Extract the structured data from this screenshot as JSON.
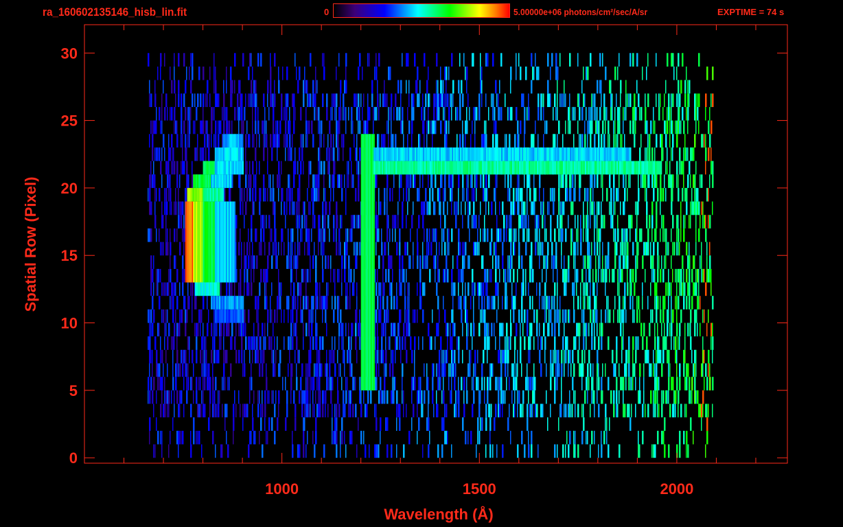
{
  "header": {
    "title": "ra_160602135146_hisb_lin.fit",
    "colorbar_min_label": "0",
    "colorbar_max_label": "5.00000e+06 photons/cm²/sec/A/sr",
    "exptime_label": "EXPTIME = 74 s"
  },
  "colors": {
    "axis": "#ff2a1a",
    "background": "#000000",
    "colormap": [
      "#000000",
      "#3c0078",
      "#0000ff",
      "#00ffff",
      "#00ff00",
      "#ffff00",
      "#ff8000",
      "#ff0000"
    ]
  },
  "chart_data": {
    "type": "heatmap",
    "xlabel": "Wavelength (Å)",
    "ylabel": "Spatial Row (Pixel)",
    "xlim": [
      500,
      2280
    ],
    "ylim": [
      -0.4,
      32.1
    ],
    "x_ticks": [
      1000,
      1500,
      2000
    ],
    "x_tick_labels": [
      "1000",
      "1500",
      "2000"
    ],
    "x_minor_step": 100,
    "y_ticks": [
      0,
      5,
      10,
      15,
      20,
      25,
      30
    ],
    "y_tick_labels": [
      "0",
      "5",
      "10",
      "15",
      "20",
      "25",
      "30"
    ],
    "value_range": [
      0,
      5000000
    ],
    "colormap": "rainbow",
    "grid": false,
    "noise_extent": {
      "wavelength": [
        660,
        2090
      ],
      "rows": [
        1,
        30
      ]
    },
    "features": [
      {
        "wavelength": [
          755,
          775
        ],
        "rows": [
          13,
          19
        ],
        "intensity": 0.93
      },
      {
        "wavelength": [
          775,
          800
        ],
        "rows": [
          13,
          19
        ],
        "intensity": 0.78
      },
      {
        "wavelength": [
          800,
          830
        ],
        "rows": [
          13,
          19
        ],
        "intensity": 0.62
      },
      {
        "wavelength": [
          830,
          880
        ],
        "rows": [
          13,
          19
        ],
        "intensity": 0.45
      },
      {
        "wavelength": [
          760,
          800
        ],
        "rows": [
          19,
          20
        ],
        "intensity": 0.75
      },
      {
        "wavelength": [
          800,
          850
        ],
        "rows": [
          19,
          20
        ],
        "intensity": 0.55
      },
      {
        "wavelength": [
          775,
          820
        ],
        "rows": [
          20,
          21
        ],
        "intensity": 0.62
      },
      {
        "wavelength": [
          820,
          870
        ],
        "rows": [
          20,
          21
        ],
        "intensity": 0.46
      },
      {
        "wavelength": [
          800,
          830
        ],
        "rows": [
          21,
          22
        ],
        "intensity": 0.6
      },
      {
        "wavelength": [
          830,
          900
        ],
        "rows": [
          21,
          22
        ],
        "intensity": 0.45
      },
      {
        "wavelength": [
          830,
          900
        ],
        "rows": [
          22,
          23
        ],
        "intensity": 0.45
      },
      {
        "wavelength": [
          850,
          900
        ],
        "rows": [
          23,
          24
        ],
        "intensity": 0.42
      },
      {
        "wavelength": [
          780,
          840
        ],
        "rows": [
          12,
          13
        ],
        "intensity": 0.5
      },
      {
        "wavelength": [
          820,
          900
        ],
        "rows": [
          11,
          12
        ],
        "intensity": 0.4
      },
      {
        "wavelength": [
          830,
          900
        ],
        "rows": [
          10,
          11
        ],
        "intensity": 0.35
      },
      {
        "wavelength": [
          1200,
          1232
        ],
        "rows": [
          5,
          24
        ],
        "intensity": 0.6
      },
      {
        "wavelength": [
          1232,
          1960
        ],
        "rows": [
          21,
          22
        ],
        "intensity": 0.55
      },
      {
        "wavelength": [
          1232,
          1880
        ],
        "rows": [
          22,
          23
        ],
        "intensity": 0.45
      }
    ]
  }
}
